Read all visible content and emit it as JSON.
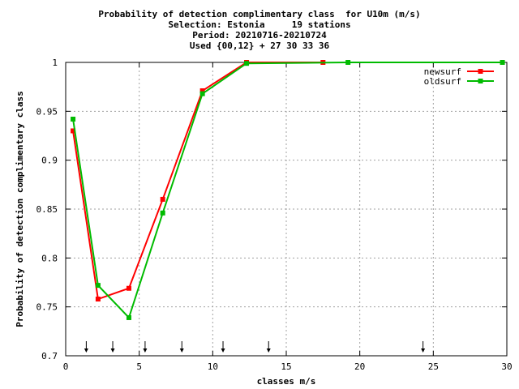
{
  "chart_data": {
    "type": "line",
    "title_lines": [
      "Probability of detection complimentary class  for U10m (m/s)",
      "Selection: Estonia     19 stations",
      "Period: 20210716-20210724",
      "Used {00,12} + 27 30 33 36"
    ],
    "xlabel": "classes m/s",
    "ylabel": "Probability of detection complimentary class",
    "xlim": [
      0,
      30
    ],
    "ylim": [
      0.7,
      1
    ],
    "xticks": [
      0,
      5,
      10,
      15,
      20,
      25,
      30
    ],
    "xtick_labels": [
      "0",
      "5",
      "10",
      "15",
      "20",
      "25",
      "30"
    ],
    "yticks": [
      0.7,
      0.75,
      0.8,
      0.85,
      0.9,
      0.95,
      1
    ],
    "ytick_labels": [
      "0.7",
      "0.75",
      "0.8",
      "0.85",
      "0.9",
      "0.95",
      "1"
    ],
    "grid": true,
    "legend_position": "top-right",
    "class_markers_x": [
      1.4,
      3.2,
      5.4,
      7.9,
      10.7,
      13.8,
      24.3
    ],
    "series": [
      {
        "name": "newsurf",
        "color": "#ff0000",
        "x": [
          0.5,
          2.2,
          4.3,
          6.6,
          9.3,
          12.3,
          17.5
        ],
        "y": [
          0.93,
          0.758,
          0.769,
          0.86,
          0.971,
          1.0,
          1.0
        ]
      },
      {
        "name": "oldsurf",
        "color": "#00bb00",
        "x": [
          0.5,
          2.2,
          4.3,
          6.6,
          9.3,
          12.3,
          19.2,
          29.7
        ],
        "y": [
          0.942,
          0.772,
          0.739,
          0.846,
          0.968,
          0.999,
          1.0,
          1.0
        ]
      }
    ]
  }
}
